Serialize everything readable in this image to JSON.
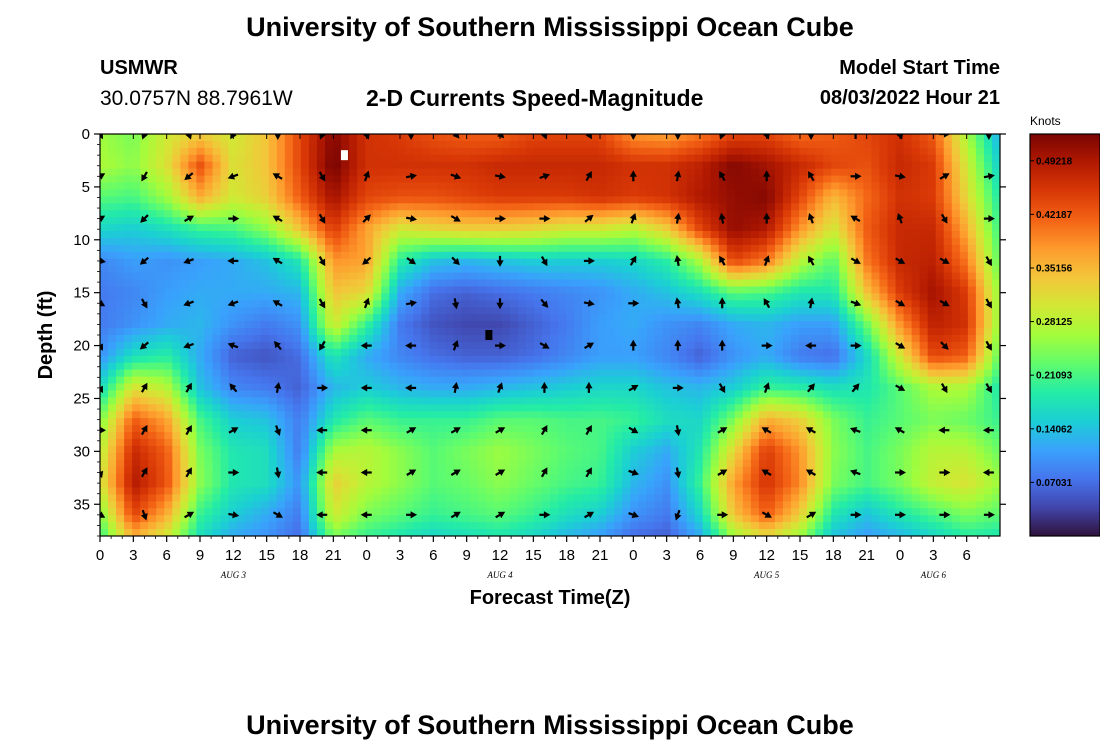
{
  "header": {
    "title": "University of Southern Mississippi Ocean Cube",
    "station_name": "USMWR",
    "coordinates": "30.0757N  88.7961W",
    "subtitle": "2-D Currents Speed-Magnitude",
    "model_start_label": "Model Start Time",
    "model_start_value": "08/03/2022 Hour 21"
  },
  "footer": {
    "title": "University of Southern Mississippi Ocean Cube"
  },
  "colors": {
    "colormap": [
      "#30123b",
      "#4145ab",
      "#4675ed",
      "#39a2fc",
      "#1bcfd4",
      "#24eca6",
      "#61fc6c",
      "#a4fc3b",
      "#d1e834",
      "#f3c63a",
      "#fe9b2d",
      "#f36315",
      "#d93806",
      "#b11901",
      "#7a0403"
    ],
    "arrow": "#000000",
    "marker": "#ffffff"
  },
  "chart_data": {
    "type": "heatmap",
    "title": "2-D Currents Speed-Magnitude",
    "xlabel": "Forecast Time(Z)",
    "ylabel": "Depth (ft)",
    "x_range": [
      0,
      81
    ],
    "y_range": [
      0,
      38
    ],
    "x_tick_labels": [
      "0",
      "3",
      "6",
      "9",
      "12",
      "15",
      "18",
      "21",
      "0",
      "3",
      "6",
      "9",
      "12",
      "15",
      "18",
      "21",
      "0",
      "3",
      "6",
      "9",
      "12",
      "15",
      "18",
      "21",
      "0",
      "3",
      "6"
    ],
    "y_ticks": [
      0,
      5,
      10,
      15,
      20,
      25,
      30,
      35
    ],
    "date_labels": [
      {
        "label": "AUG 3",
        "hour": 12
      },
      {
        "label": "AUG 4",
        "hour": 36
      },
      {
        "label": "AUG 5",
        "hour": 60
      },
      {
        "label": "AUG 6",
        "hour": 75
      }
    ],
    "colorbar": {
      "unit": "Knots",
      "range": [
        0.0,
        0.5273
      ],
      "tick_values": [
        0.07031,
        0.14062,
        0.21093,
        0.28125,
        0.35156,
        0.42187,
        0.49218
      ],
      "tick_labels": [
        "0.07031",
        "0.14062",
        "0.21093",
        "0.28125",
        "0.35156",
        "0.42187",
        "0.49218"
      ]
    },
    "speed_grid": {
      "unit": "knots",
      "x_hours": [
        0,
        3,
        6,
        9,
        12,
        15,
        18,
        21,
        24,
        27,
        30,
        33,
        36,
        39,
        42,
        45,
        48,
        51,
        54,
        57,
        60,
        63,
        66,
        69,
        72,
        75,
        78,
        81
      ],
      "depths_ft": [
        0,
        3,
        6,
        9,
        12,
        15,
        18,
        21,
        24,
        27,
        30,
        33,
        36,
        38
      ],
      "values": [
        [
          0.26,
          0.24,
          0.3,
          0.33,
          0.3,
          0.34,
          0.44,
          0.52,
          0.46,
          0.45,
          0.43,
          0.42,
          0.42,
          0.44,
          0.44,
          0.44,
          0.38,
          0.37,
          0.4,
          0.44,
          0.44,
          0.41,
          0.42,
          0.44,
          0.46,
          0.42,
          0.27,
          0.12
        ],
        [
          0.27,
          0.25,
          0.31,
          0.43,
          0.31,
          0.34,
          0.44,
          0.53,
          0.46,
          0.46,
          0.46,
          0.46,
          0.47,
          0.47,
          0.47,
          0.47,
          0.46,
          0.46,
          0.48,
          0.52,
          0.5,
          0.47,
          0.44,
          0.43,
          0.47,
          0.45,
          0.3,
          0.15
        ],
        [
          0.22,
          0.21,
          0.26,
          0.36,
          0.3,
          0.33,
          0.42,
          0.5,
          0.44,
          0.43,
          0.43,
          0.44,
          0.45,
          0.45,
          0.45,
          0.46,
          0.45,
          0.46,
          0.49,
          0.51,
          0.52,
          0.44,
          0.35,
          0.41,
          0.46,
          0.45,
          0.32,
          0.18
        ],
        [
          0.16,
          0.15,
          0.17,
          0.2,
          0.21,
          0.25,
          0.34,
          0.45,
          0.37,
          0.3,
          0.32,
          0.33,
          0.33,
          0.32,
          0.3,
          0.3,
          0.28,
          0.33,
          0.44,
          0.51,
          0.49,
          0.38,
          0.3,
          0.42,
          0.47,
          0.47,
          0.36,
          0.2
        ],
        [
          0.09,
          0.11,
          0.1,
          0.11,
          0.12,
          0.14,
          0.18,
          0.38,
          0.37,
          0.19,
          0.14,
          0.13,
          0.14,
          0.15,
          0.15,
          0.15,
          0.16,
          0.19,
          0.27,
          0.44,
          0.4,
          0.28,
          0.22,
          0.4,
          0.47,
          0.48,
          0.4,
          0.22
        ],
        [
          0.08,
          0.09,
          0.11,
          0.12,
          0.12,
          0.12,
          0.13,
          0.34,
          0.32,
          0.12,
          0.07,
          0.06,
          0.07,
          0.08,
          0.09,
          0.1,
          0.12,
          0.14,
          0.17,
          0.22,
          0.21,
          0.18,
          0.18,
          0.34,
          0.45,
          0.5,
          0.45,
          0.25
        ],
        [
          0.08,
          0.1,
          0.12,
          0.13,
          0.1,
          0.08,
          0.1,
          0.3,
          0.2,
          0.08,
          0.05,
          0.04,
          0.04,
          0.06,
          0.08,
          0.11,
          0.12,
          0.1,
          0.09,
          0.12,
          0.13,
          0.11,
          0.11,
          0.23,
          0.38,
          0.48,
          0.46,
          0.25
        ],
        [
          0.1,
          0.17,
          0.19,
          0.12,
          0.06,
          0.05,
          0.07,
          0.18,
          0.12,
          0.09,
          0.07,
          0.06,
          0.06,
          0.07,
          0.09,
          0.11,
          0.11,
          0.09,
          0.06,
          0.1,
          0.12,
          0.08,
          0.07,
          0.16,
          0.3,
          0.44,
          0.42,
          0.22
        ],
        [
          0.16,
          0.31,
          0.28,
          0.14,
          0.09,
          0.08,
          0.06,
          0.13,
          0.15,
          0.13,
          0.12,
          0.12,
          0.13,
          0.14,
          0.15,
          0.16,
          0.16,
          0.14,
          0.13,
          0.15,
          0.2,
          0.19,
          0.17,
          0.18,
          0.22,
          0.27,
          0.27,
          0.18
        ],
        [
          0.24,
          0.42,
          0.37,
          0.21,
          0.15,
          0.14,
          0.08,
          0.18,
          0.22,
          0.2,
          0.2,
          0.2,
          0.22,
          0.22,
          0.21,
          0.21,
          0.2,
          0.17,
          0.16,
          0.24,
          0.36,
          0.33,
          0.24,
          0.2,
          0.22,
          0.24,
          0.23,
          0.2
        ],
        [
          0.28,
          0.47,
          0.42,
          0.24,
          0.18,
          0.17,
          0.08,
          0.27,
          0.28,
          0.25,
          0.22,
          0.24,
          0.26,
          0.24,
          0.22,
          0.21,
          0.15,
          0.12,
          0.18,
          0.32,
          0.45,
          0.38,
          0.25,
          0.21,
          0.24,
          0.28,
          0.28,
          0.23
        ],
        [
          0.3,
          0.49,
          0.43,
          0.25,
          0.18,
          0.17,
          0.1,
          0.33,
          0.28,
          0.25,
          0.22,
          0.23,
          0.25,
          0.23,
          0.21,
          0.2,
          0.13,
          0.1,
          0.2,
          0.37,
          0.46,
          0.39,
          0.24,
          0.21,
          0.24,
          0.29,
          0.31,
          0.26
        ],
        [
          0.24,
          0.44,
          0.36,
          0.2,
          0.15,
          0.12,
          0.08,
          0.3,
          0.24,
          0.22,
          0.2,
          0.21,
          0.22,
          0.2,
          0.17,
          0.15,
          0.1,
          0.08,
          0.16,
          0.34,
          0.42,
          0.33,
          0.18,
          0.14,
          0.18,
          0.21,
          0.24,
          0.22
        ],
        [
          0.2,
          0.36,
          0.3,
          0.17,
          0.12,
          0.1,
          0.07,
          0.24,
          0.2,
          0.18,
          0.16,
          0.17,
          0.18,
          0.16,
          0.13,
          0.11,
          0.07,
          0.06,
          0.12,
          0.26,
          0.32,
          0.26,
          0.14,
          0.11,
          0.13,
          0.16,
          0.19,
          0.18
        ]
      ]
    },
    "current_vectors": {
      "description": "direction of current arrows (degrees clockwise from up/north) per depth row",
      "x_hours": [
        0,
        4,
        8,
        12,
        16,
        20,
        24,
        28,
        32,
        36,
        40,
        44,
        48,
        52,
        56,
        60,
        64,
        68,
        72,
        76,
        80
      ],
      "depths_ft": [
        0,
        4,
        8,
        12,
        16,
        20,
        24,
        28,
        32,
        36
      ],
      "angles_deg": [
        [
          150,
          200,
          160,
          210,
          180,
          200,
          160,
          180,
          140,
          135,
          160,
          150,
          180,
          180,
          200,
          160,
          180,
          0,
          160,
          90,
          180
        ],
        [
          60,
          210,
          230,
          250,
          300,
          150,
          20,
          80,
          110,
          100,
          70,
          30,
          360,
          10,
          330,
          360,
          330,
          90,
          100,
          60,
          80
        ],
        [
          60,
          225,
          60,
          90,
          300,
          150,
          45,
          100,
          120,
          90,
          90,
          50,
          20,
          10,
          350,
          360,
          340,
          300,
          340,
          150,
          90
        ],
        [
          100,
          230,
          250,
          270,
          300,
          150,
          230,
          125,
          135,
          180,
          150,
          90,
          30,
          350,
          330,
          20,
          330,
          120,
          120,
          120,
          150
        ],
        [
          120,
          150,
          250,
          250,
          300,
          150,
          20,
          80,
          170,
          180,
          140,
          100,
          90,
          350,
          360,
          330,
          10,
          110,
          120,
          120,
          150
        ],
        [
          150,
          230,
          250,
          290,
          320,
          210,
          270,
          270,
          20,
          90,
          120,
          60,
          360,
          360,
          360,
          90,
          270,
          90,
          120,
          135,
          150
        ],
        [
          150,
          30,
          30,
          320,
          10,
          90,
          270,
          270,
          10,
          20,
          360,
          360,
          60,
          90,
          150,
          20,
          40,
          40,
          120,
          150,
          150
        ],
        [
          90,
          30,
          30,
          60,
          160,
          270,
          270,
          60,
          60,
          60,
          30,
          30,
          120,
          170,
          60,
          300,
          300,
          290,
          300,
          270,
          270
        ],
        [
          160,
          30,
          30,
          90,
          170,
          270,
          270,
          60,
          60,
          60,
          30,
          30,
          110,
          170,
          60,
          300,
          300,
          290,
          90,
          90,
          270
        ],
        [
          120,
          160,
          60,
          100,
          120,
          270,
          270,
          90,
          60,
          60,
          90,
          60,
          110,
          200,
          90,
          120,
          60,
          90,
          90,
          90,
          90
        ]
      ]
    },
    "markers": [
      {
        "hour": 22,
        "depth_ft": 2,
        "color": "white"
      },
      {
        "hour": 35,
        "depth_ft": 19,
        "color": "black"
      }
    ]
  }
}
